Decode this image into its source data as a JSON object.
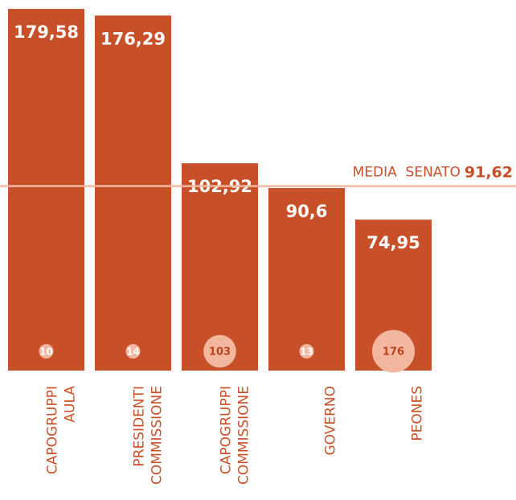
{
  "chart_data": {
    "type": "bar",
    "categories": [
      "CAPOGRUPPI AULA",
      "PRESIDENTI COMMISSIONE",
      "CAPOGRUPPI COMMISSIONE",
      "GOVERNO",
      "PEONES"
    ],
    "values": [
      179.58,
      176.29,
      102.92,
      90.6,
      74.95
    ],
    "value_labels": [
      "179,58",
      "176,29",
      "102,92",
      "90,6",
      "74,95"
    ],
    "counts": [
      10,
      14,
      103,
      13,
      176
    ],
    "color": "#c85028",
    "count_color": "#f2b79e",
    "ylim": [
      0,
      184
    ],
    "reference": {
      "label": "MEDIA  SENATO",
      "value": 91.62,
      "value_label": "91,62",
      "color": "#f2b79e"
    }
  }
}
